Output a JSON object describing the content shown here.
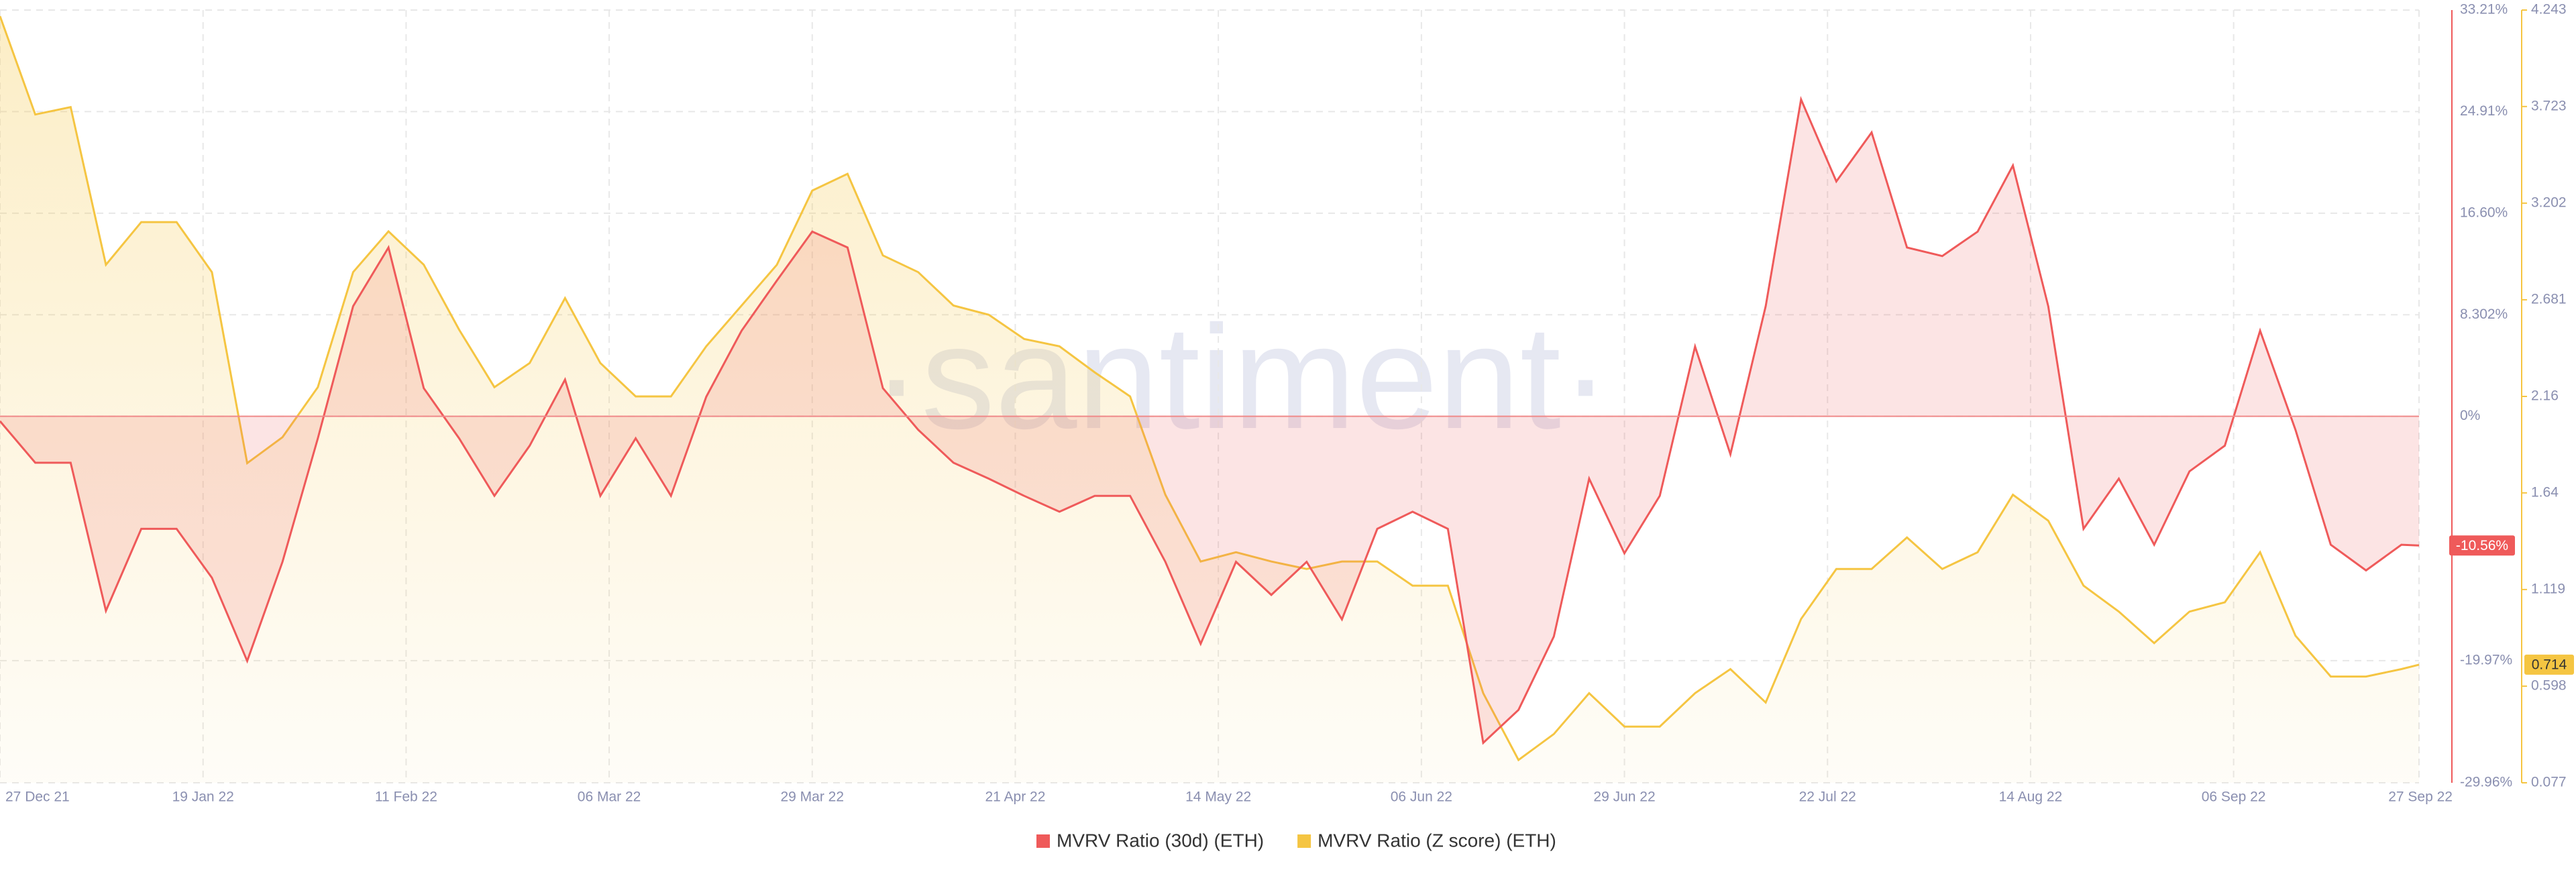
{
  "chart_data": {
    "type": "line",
    "watermark": "·santiment·",
    "x": [
      "2021-12-27",
      "2021-12-31",
      "2022-01-04",
      "2022-01-08",
      "2022-01-12",
      "2022-01-16",
      "2022-01-20",
      "2022-01-24",
      "2022-01-28",
      "2022-02-01",
      "2022-02-05",
      "2022-02-09",
      "2022-02-13",
      "2022-02-17",
      "2022-02-21",
      "2022-02-25",
      "2022-03-01",
      "2022-03-05",
      "2022-03-09",
      "2022-03-13",
      "2022-03-17",
      "2022-03-21",
      "2022-03-25",
      "2022-03-29",
      "2022-04-02",
      "2022-04-06",
      "2022-04-10",
      "2022-04-14",
      "2022-04-18",
      "2022-04-22",
      "2022-04-26",
      "2022-04-30",
      "2022-05-04",
      "2022-05-08",
      "2022-05-12",
      "2022-05-16",
      "2022-05-20",
      "2022-05-24",
      "2022-05-28",
      "2022-06-01",
      "2022-06-05",
      "2022-06-09",
      "2022-06-13",
      "2022-06-17",
      "2022-06-21",
      "2022-06-25",
      "2022-06-29",
      "2022-07-03",
      "2022-07-07",
      "2022-07-11",
      "2022-07-15",
      "2022-07-19",
      "2022-07-23",
      "2022-07-27",
      "2022-07-31",
      "2022-08-04",
      "2022-08-08",
      "2022-08-12",
      "2022-08-16",
      "2022-08-20",
      "2022-08-24",
      "2022-08-28",
      "2022-09-01",
      "2022-09-05",
      "2022-09-09",
      "2022-09-13",
      "2022-09-17",
      "2022-09-21",
      "2022-09-25",
      "2022-09-27"
    ],
    "series": [
      {
        "name": "MVRV Ratio (30d) (ETH)",
        "color": "#ef5a5a",
        "axis": "y",
        "values": [
          -0.4,
          -3.8,
          -3.8,
          -15.9,
          -9.2,
          -9.2,
          -13.2,
          -20,
          -11.9,
          -1.8,
          9.0,
          13.8,
          2.3,
          -1.8,
          -6.5,
          -2.4,
          3.0,
          -6.5,
          -1.8,
          -6.5,
          1.6,
          7.0,
          11.1,
          15.1,
          13.8,
          2.3,
          -1.1,
          -3.8,
          -5.1,
          -6.5,
          -7.8,
          -6.5,
          -6.5,
          -11.9,
          -18.6,
          -11.9,
          -14.6,
          -11.9,
          -16.6,
          -9.2,
          -7.8,
          -9.2,
          -26.7,
          -24,
          -18,
          -5.1,
          -11.2,
          -6.5,
          5.7,
          -3.1,
          9.0,
          25.9,
          19.2,
          23.2,
          13.8,
          13.1,
          15.1,
          20.5,
          9.0,
          -9.2,
          -5.1,
          -10.5,
          -4.5,
          -2.4,
          7.0,
          -1.1,
          -10.5,
          -12.6,
          -10.5,
          -10.56
        ]
      },
      {
        "name": "MVRV Ratio (Z score) (ETH)",
        "color": "#f5c542",
        "axis": "y2",
        "values": [
          4.21,
          3.68,
          3.72,
          2.87,
          3.1,
          3.1,
          2.83,
          1.8,
          1.94,
          2.21,
          2.83,
          3.05,
          2.87,
          2.52,
          2.21,
          2.34,
          2.69,
          2.34,
          2.16,
          2.16,
          2.43,
          2.65,
          2.87,
          3.27,
          3.36,
          2.92,
          2.83,
          2.65,
          2.6,
          2.47,
          2.43,
          2.29,
          2.16,
          1.63,
          1.27,
          1.32,
          1.27,
          1.23,
          1.27,
          1.27,
          1.14,
          1.14,
          0.56,
          0.2,
          0.34,
          0.56,
          0.38,
          0.38,
          0.56,
          0.69,
          0.51,
          0.96,
          1.23,
          1.23,
          1.4,
          1.23,
          1.32,
          1.63,
          1.49,
          1.14,
          1.0,
          0.83,
          1.0,
          1.05,
          1.32,
          0.87,
          0.65,
          0.65,
          0.69,
          0.714
        ]
      }
    ],
    "xlim": [
      "2021-12-27",
      "2022-09-27"
    ],
    "xticks": [
      {
        "value": "2021-12-27",
        "label": "27 Dec 21"
      },
      {
        "value": "2022-01-19",
        "label": "19 Jan 22"
      },
      {
        "value": "2022-02-11",
        "label": "11 Feb 22"
      },
      {
        "value": "2022-03-06",
        "label": "06 Mar 22"
      },
      {
        "value": "2022-03-29",
        "label": "29 Mar 22"
      },
      {
        "value": "2022-04-21",
        "label": "21 Apr 22"
      },
      {
        "value": "2022-05-14",
        "label": "14 May 22"
      },
      {
        "value": "2022-06-06",
        "label": "06 Jun 22"
      },
      {
        "value": "2022-06-29",
        "label": "29 Jun 22"
      },
      {
        "value": "2022-07-22",
        "label": "22 Jul 22"
      },
      {
        "value": "2022-08-14",
        "label": "14 Aug 22"
      },
      {
        "value": "2022-09-06",
        "label": "06 Sep 22"
      },
      {
        "value": "2022-09-27",
        "label": "27 Sep 22"
      }
    ],
    "ylim": [
      -29.96,
      33.21
    ],
    "yticks": [
      {
        "value": 33.21,
        "label": "33.21%"
      },
      {
        "value": 24.91,
        "label": "24.91%"
      },
      {
        "value": 16.6,
        "label": "16.60%"
      },
      {
        "value": 8.302,
        "label": "8.302%"
      },
      {
        "value": 0,
        "label": "0%"
      },
      {
        "value": -19.97,
        "label": "-19.97%"
      },
      {
        "value": -29.96,
        "label": "-29.96%"
      }
    ],
    "y2lim": [
      0.077,
      4.243
    ],
    "y2ticks": [
      4.243,
      3.723,
      3.202,
      2.681,
      2.16,
      1.64,
      1.119,
      0.598,
      0.077
    ],
    "annotations": [
      {
        "text": "-10.56%",
        "value": -10.56,
        "axis": "y"
      },
      {
        "text": "0.714",
        "value": 0.714,
        "axis": "y2"
      }
    ],
    "grid": true,
    "legend": "bottom"
  }
}
